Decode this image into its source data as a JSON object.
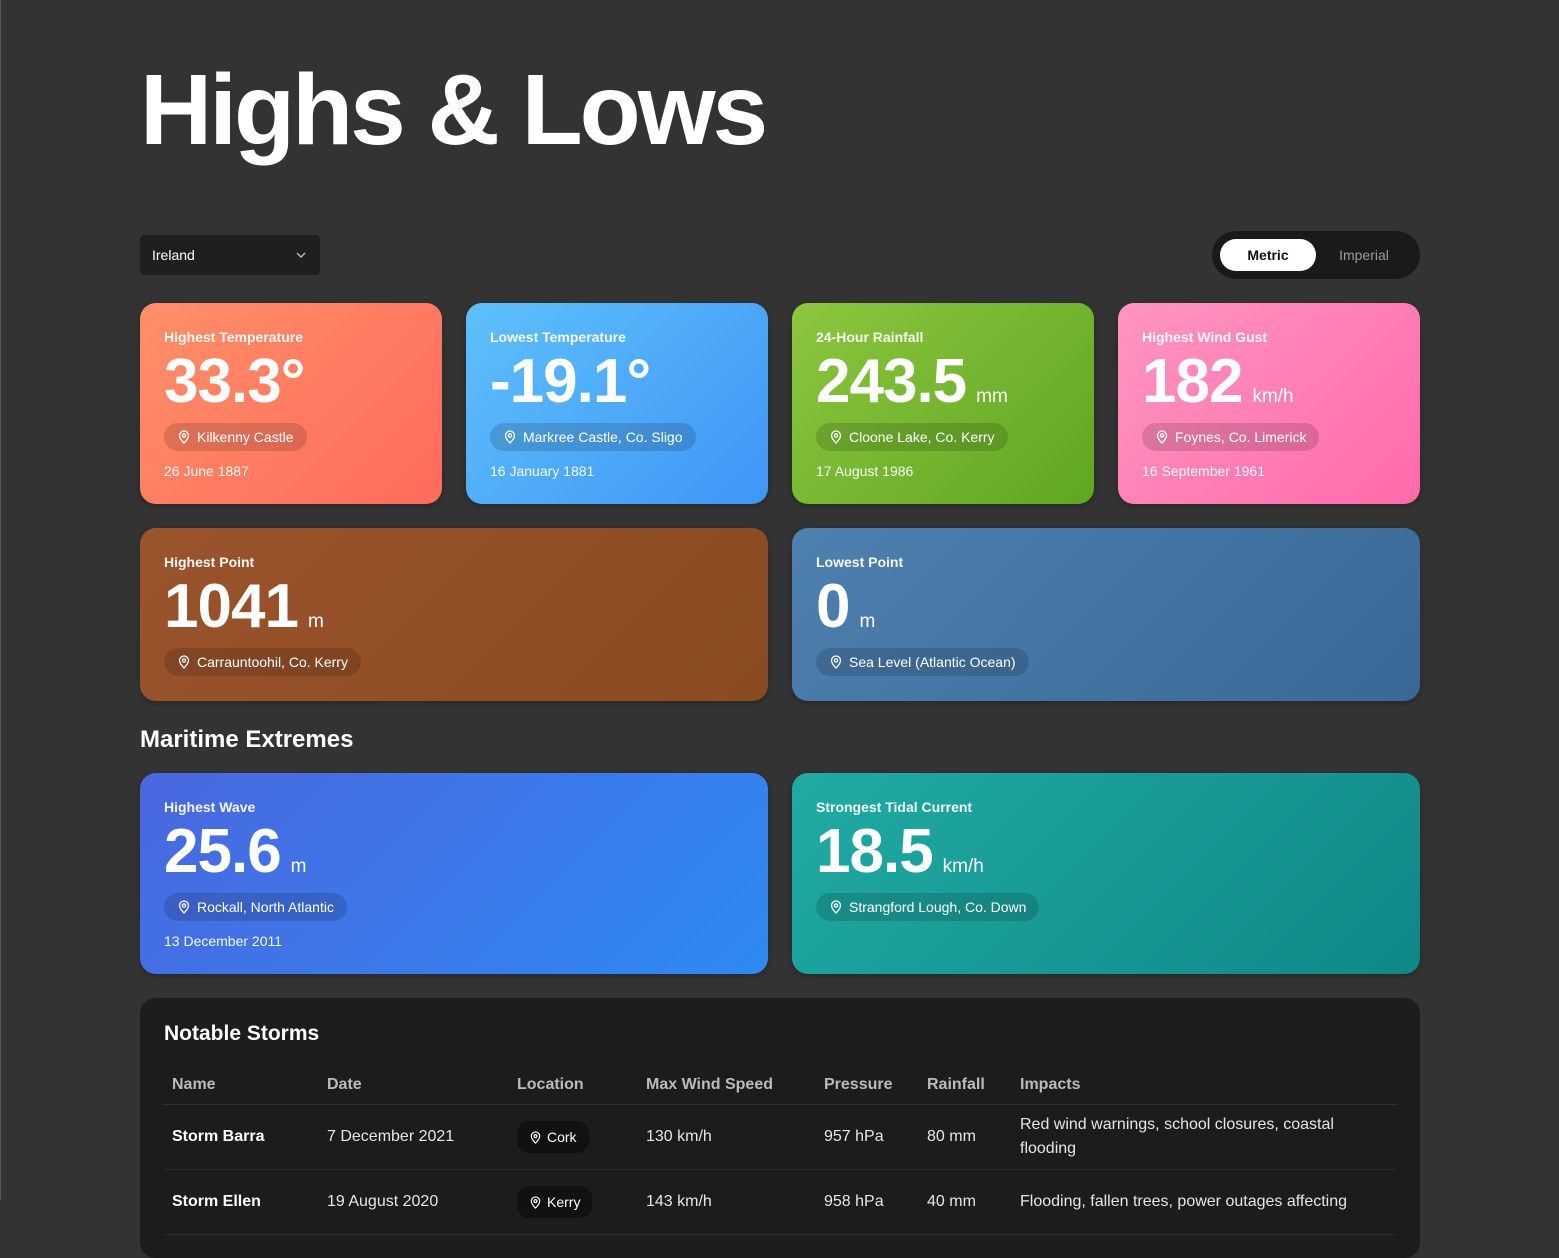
{
  "page": {
    "title": "Highs & Lows"
  },
  "region_select": {
    "value": "Ireland"
  },
  "units_toggle": {
    "options": [
      "Metric",
      "Imperial"
    ],
    "selected": "Metric"
  },
  "records": [
    {
      "label": "Highest Temperature",
      "value": "33.3°",
      "unit": "",
      "location": "Kilkenny Castle",
      "date": "26 June 1887"
    },
    {
      "label": "Lowest Temperature",
      "value": "-19.1°",
      "unit": "",
      "location": "Markree Castle, Co. Sligo",
      "date": "16 January 1881"
    },
    {
      "label": "24-Hour Rainfall",
      "value": "243.5",
      "unit": "mm",
      "location": "Cloone Lake, Co. Kerry",
      "date": "17 August 1986"
    },
    {
      "label": "Highest Wind Gust",
      "value": "182",
      "unit": "km/h",
      "location": "Foynes, Co. Limerick",
      "date": "16 September 1961"
    },
    {
      "label": "Highest Point",
      "value": "1041",
      "unit": "m",
      "location": "Carrauntoohil, Co. Kerry",
      "date": ""
    },
    {
      "label": "Lowest Point",
      "value": "0",
      "unit": "m",
      "location": "Sea Level (Atlantic Ocean)",
      "date": ""
    }
  ],
  "maritime": {
    "heading": "Maritime Extremes",
    "records": [
      {
        "label": "Highest Wave",
        "value": "25.6",
        "unit": "m",
        "location": "Rockall, North Atlantic",
        "date": "13 December 2011"
      },
      {
        "label": "Strongest Tidal Current",
        "value": "18.5",
        "unit": "km/h",
        "location": "Strangford Lough, Co. Down",
        "date": ""
      }
    ]
  },
  "storms": {
    "heading": "Notable Storms",
    "columns": [
      "Name",
      "Date",
      "Location",
      "Max Wind Speed",
      "Pressure",
      "Rainfall",
      "Impacts"
    ],
    "rows": [
      {
        "name": "Storm Barra",
        "date": "7 December 2021",
        "location": "Cork",
        "wind": "130 km/h",
        "pressure": "957 hPa",
        "rainfall": "80 mm",
        "impacts": "Red wind warnings, school closures, coastal flooding"
      },
      {
        "name": "Storm Ellen",
        "date": "19 August 2020",
        "location": "Kerry",
        "wind": "143 km/h",
        "pressure": "958 hPa",
        "rainfall": "40 mm",
        "impacts": "Flooding, fallen trees, power outages affecting"
      }
    ]
  },
  "colors": {
    "background": "#333333",
    "highest_temperature": "#ff7a60",
    "lowest_temperature": "#4aa8f8",
    "rainfall": "#76b631",
    "wind_gust": "#ff80b6",
    "highest_point": "#924f27",
    "lowest_point": "#4474a3",
    "highest_wave": "#3c79e9",
    "tidal_current": "#189996"
  },
  "icons": {
    "select": "chevron-down-icon",
    "location": "map-pin-icon"
  }
}
